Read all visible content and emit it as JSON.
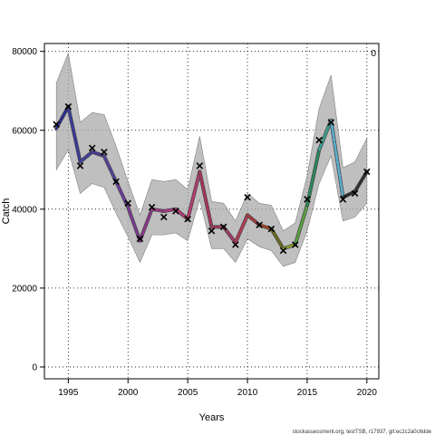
{
  "chart_data": {
    "type": "line",
    "xlabel": "Years",
    "ylabel": "Catch",
    "xlim": [
      1993,
      2021
    ],
    "ylim": [
      -3000,
      82000
    ],
    "xticks": [
      1995,
      2000,
      2005,
      2010,
      2015,
      2020
    ],
    "yticks": [
      0,
      20000,
      40000,
      60000,
      80000
    ],
    "grid": true,
    "corner_label": "0",
    "footer": "stockassessment.org, testTSB, r17937, git:ec2c2a0c6dde",
    "years": [
      1994,
      1995,
      1996,
      1997,
      1998,
      1999,
      2000,
      2001,
      2002,
      2003,
      2004,
      2005,
      2006,
      2007,
      2008,
      2009,
      2010,
      2011,
      2012,
      2013,
      2014,
      2015,
      2016,
      2017,
      2018,
      2019,
      2020
    ],
    "observed": [
      61500,
      66000,
      51000,
      55500,
      54500,
      47000,
      41500,
      32500,
      40500,
      38000,
      39500,
      37500,
      51000,
      34500,
      35500,
      31000,
      43000,
      36000,
      35000,
      29500,
      31000,
      42500,
      57500,
      62000,
      42500,
      44000,
      49500
    ],
    "fitted": [
      60500,
      66000,
      52000,
      54500,
      53500,
      47000,
      40500,
      32000,
      40000,
      39500,
      40000,
      37500,
      49500,
      35500,
      35500,
      31500,
      38500,
      36000,
      35000,
      30000,
      31000,
      41000,
      55000,
      62500,
      43000,
      44500,
      49500
    ],
    "ci_upper": [
      72000,
      79500,
      62000,
      64500,
      64000,
      56000,
      47000,
      38500,
      47500,
      47000,
      47500,
      45000,
      58500,
      42000,
      41500,
      37000,
      44000,
      41500,
      41000,
      34500,
      36500,
      48500,
      65500,
      74000,
      50500,
      52000,
      58000
    ],
    "ci_lower": [
      50000,
      55000,
      44000,
      46500,
      45500,
      39000,
      33000,
      26500,
      33500,
      33500,
      34000,
      32000,
      42500,
      30000,
      30000,
      26500,
      32500,
      30500,
      29500,
      25500,
      26500,
      34500,
      46500,
      53500,
      37000,
      38000,
      41500
    ],
    "segment_colors": [
      "#2b2f8f",
      "#3a3a9a",
      "#3f3fa0",
      "#4a3a9c",
      "#55409a",
      "#6a3c9a",
      "#7a3a92",
      "#8b3a8c",
      "#9b3a86",
      "#a53a80",
      "#b03a78",
      "#b33a6e",
      "#a7345c",
      "#9c3a62",
      "#a33a6a",
      "#b03a52",
      "#a83a3a",
      "#9a4a2a",
      "#6a6a20",
      "#8aa030",
      "#5aa040",
      "#2a8a5a",
      "#3aa090",
      "#5ab0d0",
      "#2a2a2a",
      "#303030",
      "#303030"
    ]
  }
}
